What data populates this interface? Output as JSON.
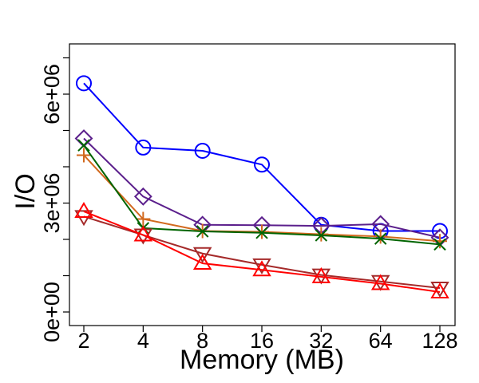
{
  "chart_data": {
    "type": "line",
    "title": "",
    "xlabel": "Memory (MB)",
    "ylabel": "I/O",
    "categories": [
      "2",
      "4",
      "8",
      "16",
      "32",
      "64",
      "128"
    ],
    "ylim": [
      -250000,
      7100000
    ],
    "yticks": [
      {
        "value": 0,
        "label": "0e+00"
      },
      {
        "value": 3000000,
        "label": "3e+06"
      },
      {
        "value": 6000000,
        "label": "6e+06"
      }
    ],
    "series": [
      {
        "name": "circle",
        "color": "#0000ff",
        "marker": "circle",
        "values": [
          6300000,
          4530000,
          4440000,
          4060000,
          2400000,
          2230000,
          2230000
        ]
      },
      {
        "name": "diamond",
        "color": "#5b1f8c",
        "marker": "diamond",
        "values": [
          4780000,
          3180000,
          2400000,
          2390000,
          2370000,
          2420000,
          2050000
        ]
      },
      {
        "name": "plus",
        "color": "#d2691e",
        "marker": "plus",
        "values": [
          4320000,
          2560000,
          2230000,
          2210000,
          2140000,
          2080000,
          1950000
        ]
      },
      {
        "name": "cross",
        "color": "#006400",
        "marker": "x",
        "values": [
          4590000,
          2310000,
          2220000,
          2180000,
          2110000,
          2020000,
          1860000
        ]
      },
      {
        "name": "triangle-down",
        "color": "#a52a2a",
        "marker": "triangle-down",
        "values": [
          2630000,
          2120000,
          1610000,
          1300000,
          1020000,
          840000,
          660000
        ]
      },
      {
        "name": "triangle-up",
        "color": "#ff0000",
        "marker": "triangle-up",
        "values": [
          2770000,
          2120000,
          1340000,
          1160000,
          970000,
          780000,
          550000
        ]
      }
    ]
  }
}
